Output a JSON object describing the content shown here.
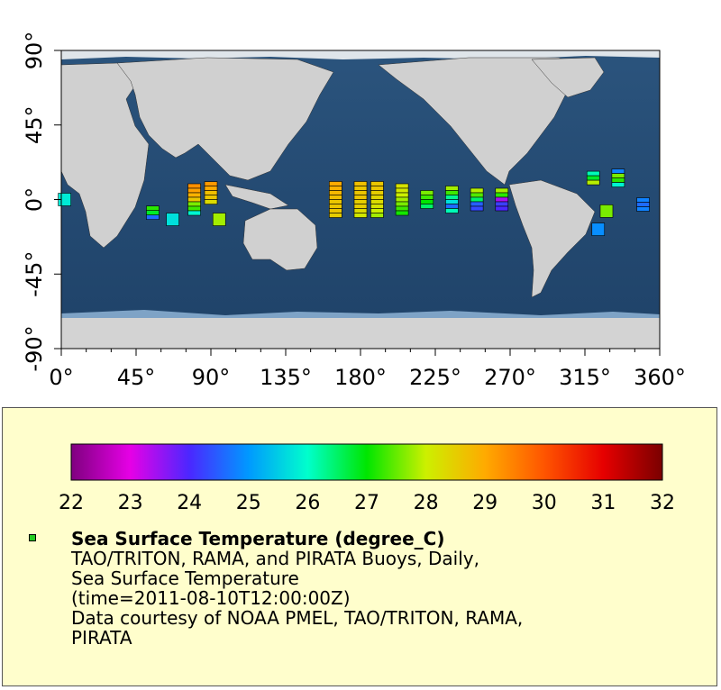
{
  "map": {
    "x_ticks": [
      "0°",
      "45°",
      "90°",
      "135°",
      "180°",
      "225°",
      "270°",
      "315°",
      "360°"
    ],
    "y_ticks": [
      "90°",
      "45°",
      "0°",
      "-45°",
      "-90°"
    ],
    "x_range": [
      0,
      360
    ],
    "y_range": [
      -90,
      90
    ],
    "colors": {
      "ocean_shallow": "#6b97be",
      "ocean_deep": "#1d3f63",
      "land": "#d0d0d0",
      "ice": "#e3e8ec",
      "axis": "#000000"
    }
  },
  "buoys": [
    {
      "lon": 2,
      "lat": 0,
      "temps": [
        25.8
      ]
    },
    {
      "lon": 55,
      "lat": -8,
      "temps": [
        27.2,
        26.8,
        24.6
      ]
    },
    {
      "lon": 67,
      "lat": -12,
      "temps": [
        25.7
      ]
    },
    {
      "lon": 80,
      "lat": 0,
      "temps": [
        29.3,
        29.1,
        28.9,
        28.6,
        27.6,
        27.3,
        25.9
      ]
    },
    {
      "lon": 90,
      "lat": 4,
      "temps": [
        29.2,
        29.0,
        28.7,
        28.6,
        28.3
      ]
    },
    {
      "lon": 95,
      "lat": -12,
      "temps": [
        27.8
      ]
    },
    {
      "lon": 165,
      "lat": 0,
      "temps": [
        29.0,
        28.9,
        28.8,
        28.7,
        28.6,
        28.6,
        28.6,
        28.5
      ]
    },
    {
      "lon": 180,
      "lat": 0,
      "temps": [
        28.7,
        28.6,
        28.6,
        28.6,
        28.5,
        28.5,
        28.3,
        28.1
      ]
    },
    {
      "lon": 190,
      "lat": 0,
      "temps": [
        28.6,
        28.6,
        28.5,
        28.4,
        28.3,
        28.2,
        28.0,
        27.8
      ]
    },
    {
      "lon": 205,
      "lat": 0,
      "temps": [
        28.2,
        28.1,
        28.0,
        27.8,
        27.6,
        27.3,
        27.1
      ]
    },
    {
      "lon": 220,
      "lat": 0,
      "temps": [
        27.6,
        27.3,
        27.0,
        26.5
      ]
    },
    {
      "lon": 235,
      "lat": 0,
      "temps": [
        27.8,
        27.3,
        26.3,
        25.7,
        24.6,
        26.1
      ]
    },
    {
      "lon": 250,
      "lat": 0,
      "temps": [
        27.9,
        27.4,
        26.5,
        24.5,
        24.3
      ]
    },
    {
      "lon": 265,
      "lat": 0,
      "temps": [
        27.8,
        27.2,
        23.4,
        24.2,
        24.0
      ]
    },
    {
      "lon": 320,
      "lat": 13,
      "temps": [
        26.1,
        26.8,
        27.9
      ]
    },
    {
      "lon": 323,
      "lat": -18,
      "temps": [
        24.9
      ]
    },
    {
      "lon": 328,
      "lat": -7,
      "temps": [
        27.6
      ]
    },
    {
      "lon": 335,
      "lat": 13,
      "temps": [
        24.8,
        27.6,
        27.2,
        25.9
      ]
    },
    {
      "lon": 350,
      "lat": -3,
      "temps": [
        24.8,
        24.6,
        24.8
      ]
    }
  ],
  "legend": {
    "colorbar_labels": [
      "22",
      "23",
      "24",
      "25",
      "26",
      "27",
      "28",
      "29",
      "30",
      "31",
      "32"
    ],
    "colorbar_min": 22,
    "colorbar_max": 32,
    "title": "Sea Surface Temperature (degree_C)",
    "lines": [
      "TAO/TRITON, RAMA, and PIRATA Buoys, Daily,",
      "Sea Surface Temperature",
      "(time=2011-08-10T12:00:00Z)",
      "Data courtesy of NOAA PMEL, TAO/TRITON, RAMA,",
      "PIRATA"
    ],
    "swatch_color": "#22cc22"
  }
}
